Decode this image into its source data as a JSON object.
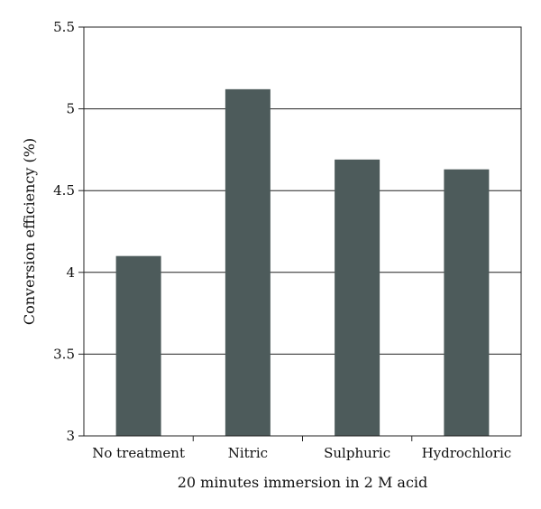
{
  "chart_data": {
    "type": "bar",
    "title": "",
    "xlabel": "20 minutes immersion in 2 M acid",
    "ylabel": "Conversion efficiency (%)",
    "categories": [
      "No treatment",
      "Nitric",
      "Sulphuric",
      "Hydrochloric"
    ],
    "values": [
      4.1,
      5.12,
      4.69,
      4.63
    ],
    "ylim": [
      3,
      5.5
    ],
    "yticks": [
      "3",
      "3.5",
      "4",
      "4.5",
      "5",
      "5.5"
    ],
    "grid": true,
    "bar_color": "#4d5b5b"
  }
}
